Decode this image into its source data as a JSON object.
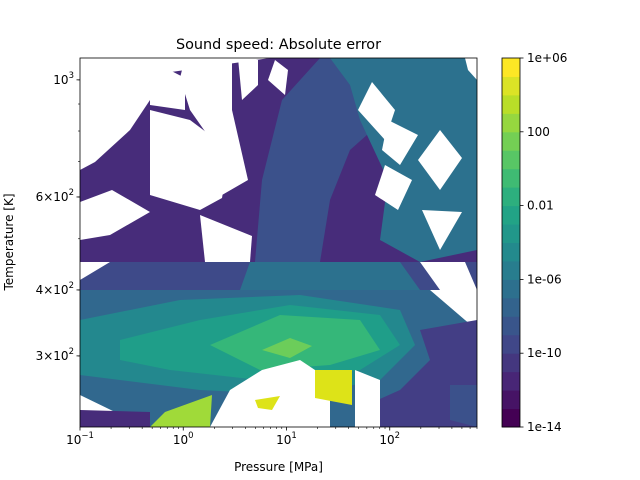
{
  "chart_data": {
    "type": "contourf",
    "title": "Sound speed: Absolute error",
    "xlabel": "Pressure [MPa]",
    "ylabel": "Temperature [K]",
    "xscale": "log",
    "yscale": "log",
    "xlim": [
      0.1,
      700
    ],
    "ylim": [
      220,
      1100
    ],
    "x_ticks": [
      {
        "value": 0.1,
        "base": "10",
        "exp": "−1"
      },
      {
        "value": 1,
        "base": "10",
        "exp": "0"
      },
      {
        "value": 10,
        "base": "10",
        "exp": "1"
      },
      {
        "value": 100,
        "base": "10",
        "exp": "2"
      }
    ],
    "y_ticks": [
      {
        "value": 300,
        "coef": "3",
        "exp": "2"
      },
      {
        "value": 400,
        "coef": "4",
        "exp": "2"
      },
      {
        "value": 600,
        "coef": "6",
        "exp": "2"
      },
      {
        "value": 1000,
        "coef": "",
        "exp": "3"
      }
    ],
    "colorbar": {
      "scale": "log",
      "level_exponents": [
        -14,
        -13,
        -12,
        -11,
        -10,
        -9,
        -8,
        -7,
        -6,
        -5,
        -4,
        -3,
        -2,
        -1,
        0,
        1,
        2,
        3,
        4,
        5,
        6
      ],
      "ticks": [
        {
          "exp": -14,
          "label": "1e-14"
        },
        {
          "exp": -10,
          "label": "1e-10"
        },
        {
          "exp": -6,
          "label": "1e-06"
        },
        {
          "exp": -2,
          "label": "0.01"
        },
        {
          "exp": 2,
          "label": "100"
        },
        {
          "exp": 6,
          "label": "1e+06"
        }
      ]
    },
    "grid": false,
    "legend": "colorbar right"
  }
}
